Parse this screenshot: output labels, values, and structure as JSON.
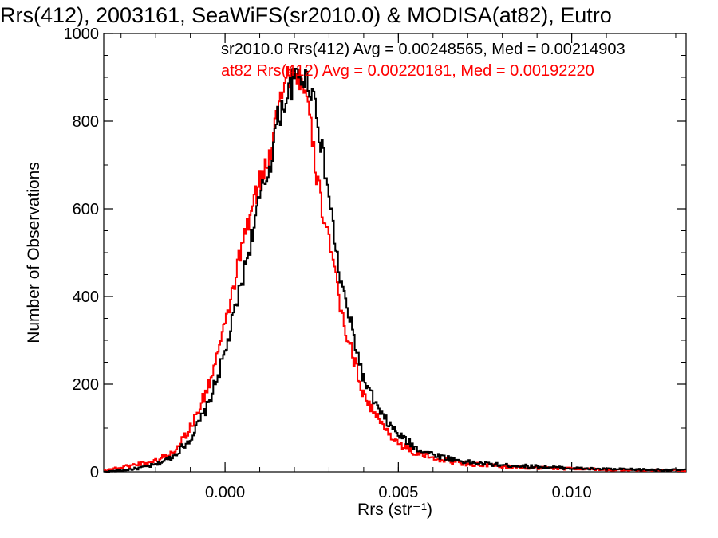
{
  "chart_data": {
    "type": "line",
    "title": "Rrs(412), 2003161, SeaWiFS(sr2010.0) & MODISA(at82), Eutro",
    "xlabel": "Rrs (str⁻¹)",
    "ylabel": "Number of Observations",
    "xlim": [
      -0.0035,
      0.0133
    ],
    "ylim": [
      0,
      1000
    ],
    "x_ticks": [
      0.0,
      0.005,
      0.01
    ],
    "x_tick_labels": [
      "0.000",
      "0.005",
      "0.010"
    ],
    "y_ticks": [
      0,
      200,
      400,
      600,
      800,
      1000
    ],
    "y_tick_labels": [
      "0",
      "200",
      "400",
      "600",
      "800",
      "1000"
    ],
    "legend_placement": "top",
    "grid": false,
    "series": [
      {
        "label": "sr2010.0 Rrs(412) Avg = 0.00248565, Med = 0.00214903",
        "color": "#000000",
        "x": [
          -0.0035,
          -0.003,
          -0.0025,
          -0.002,
          -0.0015,
          -0.001,
          -0.0005,
          0.0,
          0.0005,
          0.001,
          0.0013,
          0.0015,
          0.0018,
          0.002,
          0.0022,
          0.0024,
          0.0026,
          0.0028,
          0.003,
          0.0033,
          0.0035,
          0.004,
          0.0045,
          0.005,
          0.0055,
          0.006,
          0.0065,
          0.007,
          0.008,
          0.009,
          0.01,
          0.011,
          0.012,
          0.0133
        ],
        "values": [
          0,
          3,
          8,
          16,
          35,
          75,
          150,
          270,
          440,
          620,
          700,
          800,
          860,
          895,
          905,
          890,
          850,
          730,
          630,
          450,
          380,
          210,
          130,
          85,
          55,
          40,
          30,
          22,
          15,
          12,
          8,
          6,
          5,
          4
        ]
      },
      {
        "label": "at82 Rrs(412) Avg = 0.00220181, Med = 0.00192220",
        "color": "#ff0000",
        "x": [
          -0.0035,
          -0.003,
          -0.0025,
          -0.002,
          -0.0015,
          -0.001,
          -0.0005,
          0.0,
          0.0005,
          0.001,
          0.0013,
          0.0015,
          0.0018,
          0.002,
          0.0022,
          0.0024,
          0.0026,
          0.0028,
          0.003,
          0.0033,
          0.0035,
          0.004,
          0.0045,
          0.005,
          0.0055,
          0.006,
          0.0065,
          0.007,
          0.008,
          0.009,
          0.01,
          0.011,
          0.012,
          0.0133
        ],
        "values": [
          3,
          10,
          18,
          25,
          45,
          100,
          190,
          330,
          520,
          660,
          720,
          850,
          900,
          915,
          890,
          830,
          700,
          600,
          540,
          380,
          320,
          175,
          110,
          65,
          42,
          32,
          24,
          18,
          12,
          9,
          7,
          5,
          4,
          3
        ]
      }
    ]
  }
}
